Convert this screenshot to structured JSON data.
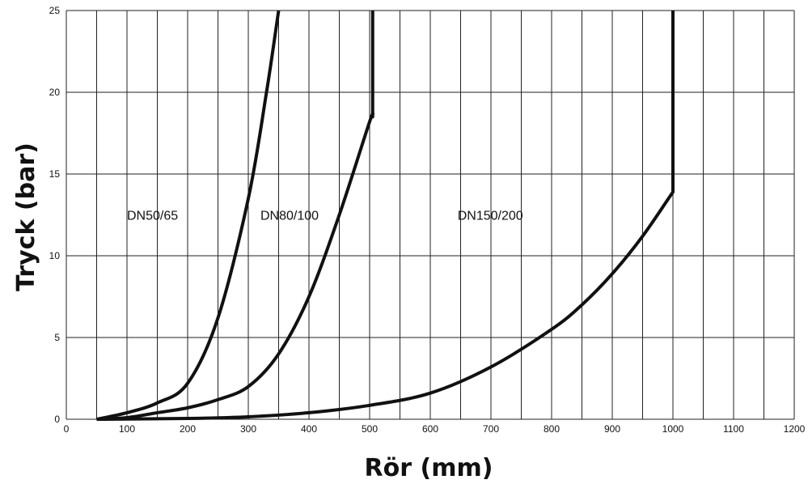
{
  "chart_data": {
    "type": "line",
    "title": "",
    "xlabel": "Rör (mm)",
    "ylabel": "Tryck (bar)",
    "xlim": [
      0,
      1200
    ],
    "ylim": [
      0,
      25
    ],
    "xticks": [
      "0",
      "100",
      "200",
      "300",
      "400",
      "500",
      "600",
      "700",
      "800",
      "900",
      "1000",
      "1100",
      "1200"
    ],
    "yticks": [
      "0",
      "5",
      "10",
      "15",
      "20",
      "25"
    ],
    "grid": true,
    "series": [
      {
        "name": "DN50/65",
        "x": [
          50,
          100,
          150,
          200,
          250,
          300,
          330,
          350
        ],
        "y": [
          0,
          0.4,
          1.0,
          2.2,
          6.2,
          13.5,
          20.0,
          25.0
        ]
      },
      {
        "name": "DN80/100",
        "x": [
          50,
          100,
          150,
          200,
          250,
          300,
          350,
          400,
          450,
          500,
          505,
          505
        ],
        "y": [
          0,
          0.1,
          0.4,
          0.7,
          1.2,
          2.0,
          4.0,
          7.5,
          12.5,
          18.2,
          18.5,
          25.0
        ]
      },
      {
        "name": "DN150/200",
        "x": [
          50,
          200,
          300,
          400,
          500,
          600,
          700,
          800,
          850,
          900,
          950,
          1000,
          1000
        ],
        "y": [
          0,
          0.05,
          0.15,
          0.4,
          0.85,
          1.6,
          3.2,
          5.5,
          7.0,
          8.9,
          11.2,
          13.9,
          25.0
        ]
      }
    ],
    "annotations": [
      {
        "text": "DN50/65",
        "x": 100,
        "y": 12.5
      },
      {
        "text": "DN80/100",
        "x": 320,
        "y": 12.5
      },
      {
        "text": "DN150/200",
        "x": 645,
        "y": 12.5
      }
    ]
  }
}
